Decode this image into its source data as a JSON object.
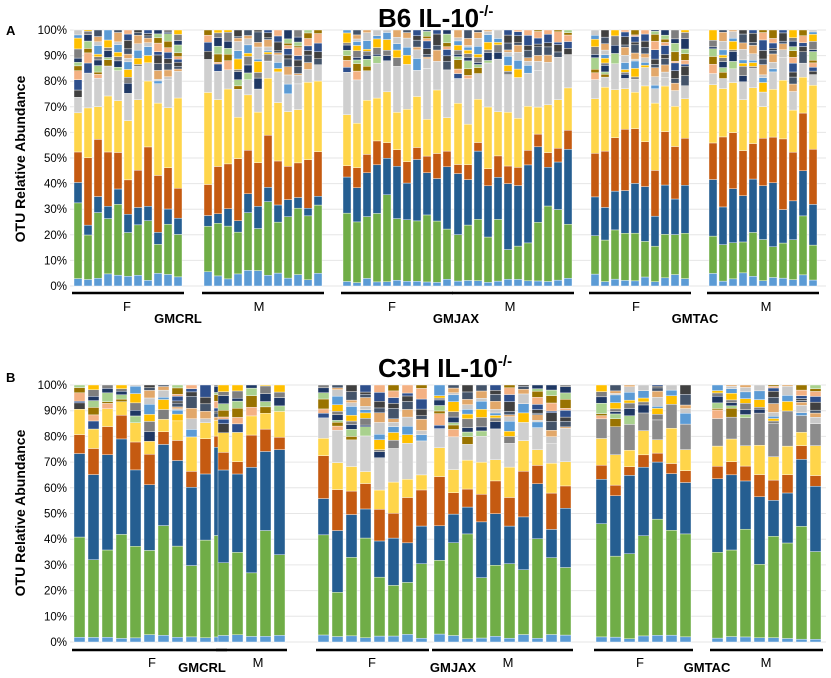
{
  "chart_data": [
    {
      "type": "bar",
      "subtype": "stacked-100-percent",
      "panel": "A",
      "title": "B6 IL-10",
      "title_superscript": "-/-",
      "ylabel": "OTU Relative Abundance",
      "ylim": [
        0,
        100
      ],
      "yticks": [
        "0%",
        "10%",
        "20%",
        "30%",
        "40%",
        "50%",
        "60%",
        "70%",
        "80%",
        "90%",
        "100%"
      ],
      "legend": "none",
      "taxa_colors": [
        "#5b9bd5",
        "#70ad47",
        "#255e91",
        "#c55a11",
        "#ffc000",
        "#ffd966",
        "#d0cece",
        "#7f7f7f",
        "#404040",
        "#2e4f8c",
        "#f4b183",
        "#997300",
        "#a9d18e",
        "#1f3864"
      ],
      "groups": [
        {
          "name": "GMCRL",
          "sexes": [
            {
              "label": "F",
              "n_bars": 11
            },
            {
              "label": "M",
              "n_bars": 12
            }
          ],
          "composition": [
            {
              "taxon": "Blue (light)",
              "value": 4
            },
            {
              "taxon": "Green",
              "value": 20
            },
            {
              "taxon": "Blue (dark)",
              "value": 5
            },
            {
              "taxon": "Brown/orange",
              "value": 18
            },
            {
              "taxon": "Yellow",
              "value": 24
            },
            {
              "taxon": "Light gray",
              "value": 9
            },
            {
              "taxon": "Other",
              "value": 20
            }
          ]
        },
        {
          "name": "GMJAX",
          "sexes": [
            {
              "label": "F",
              "n_bars": 11
            },
            {
              "label": "M",
              "n_bars": 12
            }
          ],
          "composition": [
            {
              "taxon": "Blue (light)",
              "value": 2
            },
            {
              "taxon": "Green",
              "value": 22
            },
            {
              "taxon": "Blue (dark)",
              "value": 22
            },
            {
              "taxon": "Brown/orange",
              "value": 6
            },
            {
              "taxon": "Yellow",
              "value": 20
            },
            {
              "taxon": "Light gray",
              "value": 14
            },
            {
              "taxon": "Other",
              "value": 14
            }
          ]
        },
        {
          "name": "GMTAC",
          "sexes": [
            {
              "label": "F",
              "n_bars": 10
            },
            {
              "label": "M",
              "n_bars": 11
            }
          ],
          "composition": [
            {
              "taxon": "Blue (light)",
              "value": 3
            },
            {
              "taxon": "Green",
              "value": 14
            },
            {
              "taxon": "Blue (dark)",
              "value": 20
            },
            {
              "taxon": "Brown/orange",
              "value": 19
            },
            {
              "taxon": "Yellow",
              "value": 20
            },
            {
              "taxon": "Light gray",
              "value": 6
            },
            {
              "taxon": "Other",
              "value": 18
            }
          ]
        }
      ]
    },
    {
      "type": "bar",
      "subtype": "stacked-100-percent",
      "panel": "B",
      "title": "C3H IL-10",
      "title_superscript": "-/-",
      "ylabel": "OTU Relative Abundance",
      "ylim": [
        0,
        100
      ],
      "yticks": [
        "0%",
        "10%",
        "20%",
        "30%",
        "40%",
        "50%",
        "60%",
        "70%",
        "80%",
        "90%",
        "100%"
      ],
      "legend": "none",
      "taxa_colors": [
        "#5b9bd5",
        "#70ad47",
        "#255e91",
        "#c55a11",
        "#ffc000",
        "#ffd966",
        "#d0cece",
        "#7f7f7f",
        "#404040",
        "#2e4f8c",
        "#f4b183",
        "#997300",
        "#a9d18e",
        "#1f3864"
      ],
      "groups": [
        {
          "name": "GMCRL",
          "sexes": [
            {
              "label": "F",
              "n_bars": 11
            },
            {
              "label": "M",
              "n_bars": 5
            }
          ],
          "composition": [
            {
              "taxon": "Blue (light)",
              "value": 2
            },
            {
              "taxon": "Green",
              "value": 36
            },
            {
              "taxon": "Blue (dark)",
              "value": 32
            },
            {
              "taxon": "Brown/orange",
              "value": 8
            },
            {
              "taxon": "Yellow",
              "value": 8
            },
            {
              "taxon": "Other",
              "value": 14
            }
          ]
        },
        {
          "name": "GMJAX",
          "sexes": [
            {
              "label": "F",
              "n_bars": 8
            },
            {
              "label": "M",
              "n_bars": 10
            }
          ],
          "composition": [
            {
              "taxon": "Blue (light)",
              "value": 2
            },
            {
              "taxon": "Green",
              "value": 30
            },
            {
              "taxon": "Blue (dark)",
              "value": 18
            },
            {
              "taxon": "Brown/orange",
              "value": 12
            },
            {
              "taxon": "Yellow",
              "value": 8
            },
            {
              "taxon": "Light gray",
              "value": 10
            },
            {
              "taxon": "Other",
              "value": 20
            }
          ]
        },
        {
          "name": "GMTAC",
          "sexes": [
            {
              "label": "F",
              "n_bars": 7
            },
            {
              "label": "M",
              "n_bars": 8
            }
          ],
          "composition": [
            {
              "taxon": "Blue (light)",
              "value": 2
            },
            {
              "taxon": "Green",
              "value": 36
            },
            {
              "taxon": "Blue (dark)",
              "value": 24
            },
            {
              "taxon": "Brown/orange",
              "value": 6
            },
            {
              "taxon": "Yellow",
              "value": 10
            },
            {
              "taxon": "Gray",
              "value": 10
            },
            {
              "taxon": "Other",
              "value": 12
            }
          ]
        }
      ]
    }
  ]
}
